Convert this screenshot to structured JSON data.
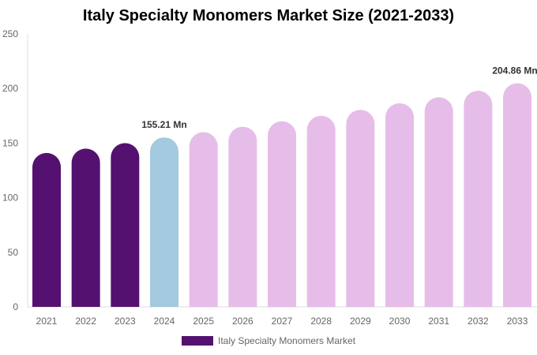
{
  "chart_data": {
    "type": "bar",
    "title": "Italy Specialty Monomers Market Size (2021-2033)",
    "categories": [
      "2021",
      "2022",
      "2023",
      "2024",
      "2025",
      "2026",
      "2027",
      "2028",
      "2029",
      "2030",
      "2031",
      "2032",
      "2033"
    ],
    "series": [
      {
        "name": "Italy Specialty Monomers Market",
        "values": [
          141,
          145,
          150,
          155.21,
          160,
          165,
          170,
          175,
          180.5,
          186.5,
          192,
          198,
          204.86
        ]
      }
    ],
    "data_labels": [
      {
        "index": 3,
        "text": "155.21 Mn"
      },
      {
        "index": 12,
        "text": "204.86 Mn"
      }
    ],
    "yticks": [
      0,
      50,
      100,
      150,
      200,
      250
    ],
    "ylim": [
      0,
      250
    ],
    "xlabel": "",
    "ylabel": "",
    "grid": false,
    "legend_position": "bottom",
    "colors": {
      "historical": "#541170",
      "base_year": "#a3cade",
      "forecast": "#e6bde9"
    }
  }
}
